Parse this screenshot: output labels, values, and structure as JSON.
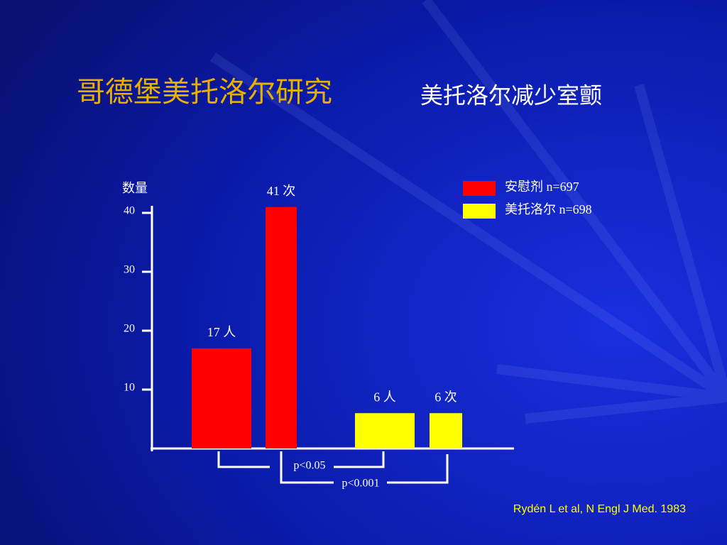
{
  "chart_data": {
    "type": "bar",
    "title": "哥德堡美托洛尔研究",
    "subtitle": "美托洛尔减少室颤",
    "y_label": "数量",
    "categories": [
      null,
      null
    ],
    "series": [
      {
        "name": "安慰剂 n=697",
        "color": "#ff0000",
        "values": [
          17,
          41
        ],
        "value_labels": [
          "17 人",
          "41 次"
        ]
      },
      {
        "name": "美托洛尔 n=698",
        "color": "#ffff00",
        "values": [
          6,
          6
        ],
        "value_labels": [
          "6 人",
          "6 次"
        ]
      }
    ],
    "ylim": [
      0,
      42
    ],
    "yticks": [
      10,
      20,
      30,
      40
    ],
    "annotations": [
      "p<0.05",
      "p<0.001"
    ],
    "source": "Rydén L et al, N Engl J Med. 1983"
  }
}
